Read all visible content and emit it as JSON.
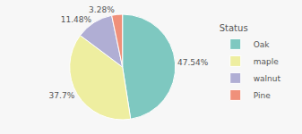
{
  "chart_data": {
    "type": "pie",
    "categories": [
      "Oak",
      "maple",
      "walnut",
      "Pine"
    ],
    "values": [
      47.54,
      37.7,
      11.48,
      3.28
    ],
    "value_labels": [
      "47.54%",
      "37.7%",
      "11.48%",
      "3.28%"
    ],
    "colors": [
      "#7ec8c0",
      "#eeeea0",
      "#b0aed4",
      "#f0907a"
    ],
    "legend_title": "Status",
    "legend": "right",
    "data_labels": true
  }
}
